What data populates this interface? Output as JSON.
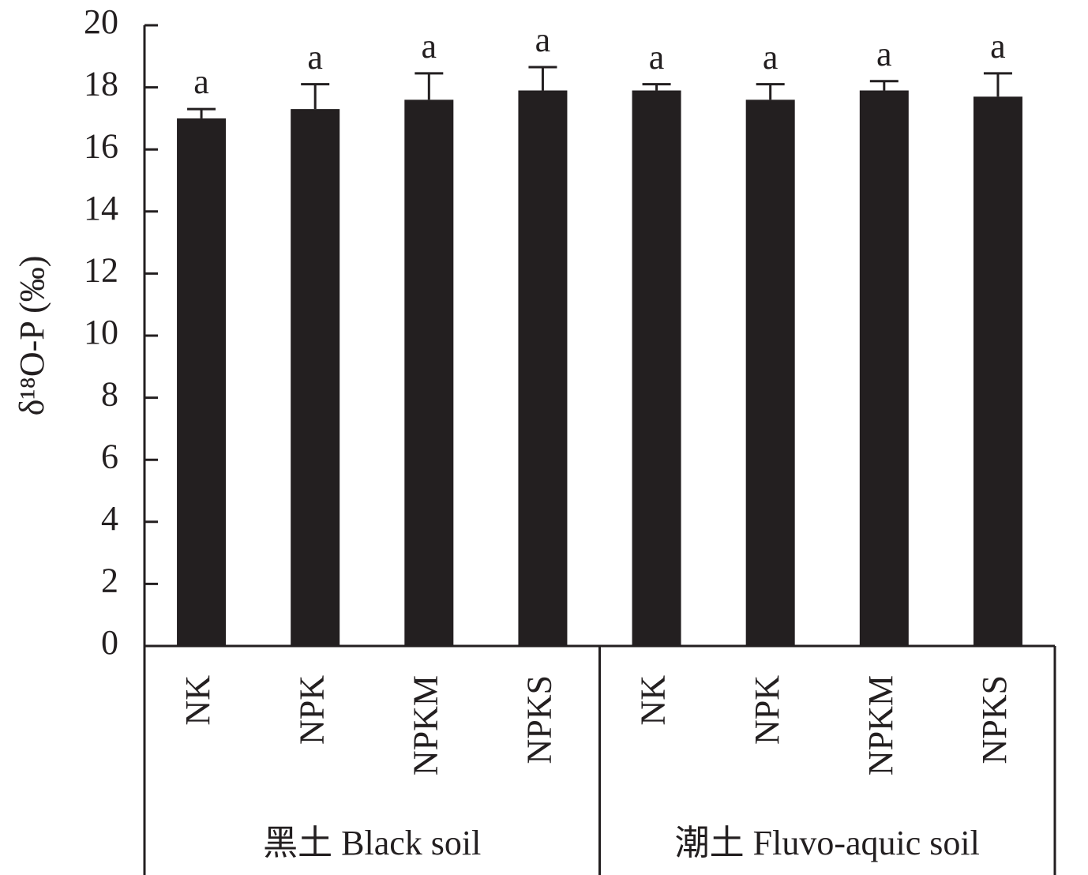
{
  "chart_data": {
    "type": "bar",
    "ylabel": "δ¹⁸O-P (‰)",
    "categories": [
      "NK",
      "NPK",
      "NPKM",
      "NPKS",
      "NK",
      "NPK",
      "NPKM",
      "NPKS"
    ],
    "groups": [
      "黑土 Black soil",
      "潮土 Fluvo-aquic soil"
    ],
    "values": [
      17.0,
      17.3,
      17.6,
      17.9,
      17.9,
      17.6,
      17.9,
      17.7
    ],
    "errors": [
      0.3,
      0.8,
      0.85,
      0.75,
      0.2,
      0.5,
      0.3,
      0.75
    ],
    "annotations": [
      "a",
      "a",
      "a",
      "a",
      "a",
      "a",
      "a",
      "a"
    ],
    "color": "#231f20",
    "ylim": [
      0,
      20
    ],
    "yticks": [
      0,
      2,
      4,
      6,
      8,
      10,
      12,
      14,
      16,
      18,
      20
    ]
  }
}
